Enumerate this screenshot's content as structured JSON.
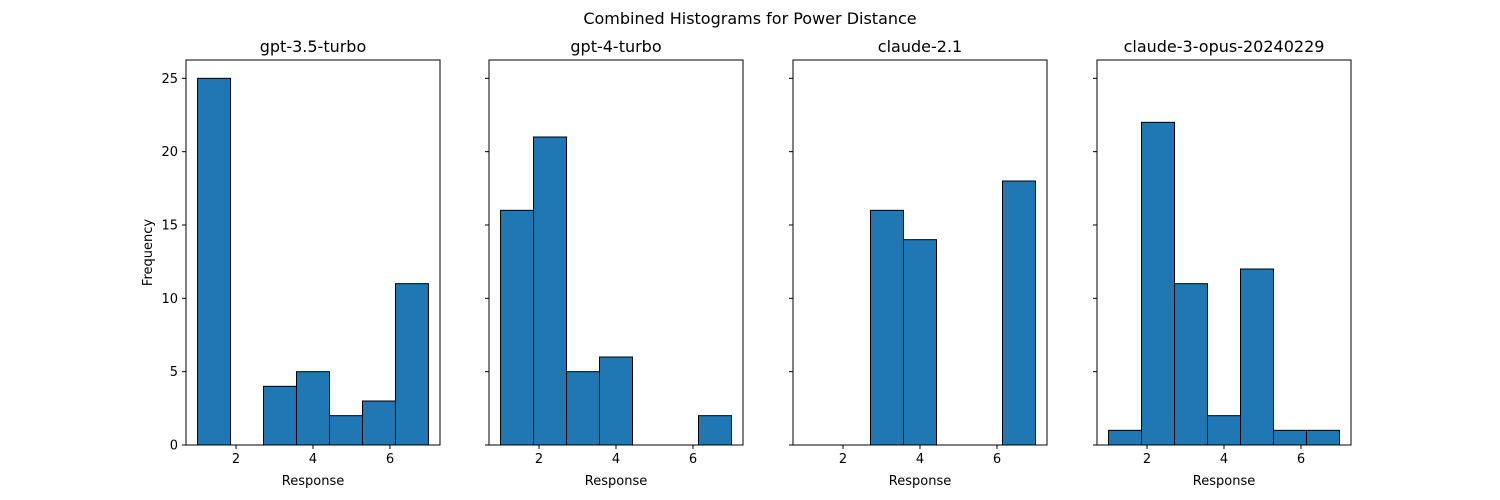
{
  "figure": {
    "title": "Combined Histograms for Power Distance"
  },
  "chart_data": [
    {
      "type": "bar",
      "title": "gpt-3.5-turbo",
      "xlabel": "Response",
      "ylabel": "Frequency",
      "bin_edges": [
        1,
        1.857,
        2.714,
        3.571,
        4.429,
        5.286,
        6.143,
        7
      ],
      "values": [
        25,
        0,
        4,
        5,
        2,
        3,
        11
      ],
      "xticks": [
        2,
        4,
        6
      ],
      "yticks": [
        0,
        5,
        10,
        15,
        20,
        25
      ],
      "color": "#1f77b4"
    },
    {
      "type": "bar",
      "title": "gpt-4-turbo",
      "xlabel": "Response",
      "ylabel": "",
      "bin_edges": [
        1,
        1.857,
        2.714,
        3.571,
        4.429,
        5.286,
        6.143,
        7
      ],
      "values": [
        16,
        21,
        5,
        6,
        0,
        0,
        2
      ],
      "xticks": [
        2,
        4,
        6
      ],
      "yticks": [
        0,
        5,
        10,
        15,
        20,
        25
      ],
      "color": "#1f77b4"
    },
    {
      "type": "bar",
      "title": "claude-2.1",
      "xlabel": "Response",
      "ylabel": "",
      "bin_edges": [
        1,
        1.857,
        2.714,
        3.571,
        4.429,
        5.286,
        6.143,
        7
      ],
      "values": [
        0,
        0,
        16,
        14,
        0,
        0,
        18
      ],
      "xticks": [
        2,
        4,
        6
      ],
      "yticks": [
        0,
        5,
        10,
        15,
        20,
        25
      ],
      "color": "#1f77b4"
    },
    {
      "type": "bar",
      "title": "claude-3-opus-20240229",
      "xlabel": "Response",
      "ylabel": "",
      "bin_edges": [
        1,
        1.857,
        2.714,
        3.571,
        4.429,
        5.286,
        6.143,
        7
      ],
      "values": [
        1,
        22,
        11,
        2,
        12,
        1,
        1
      ],
      "xticks": [
        2,
        4,
        6
      ],
      "yticks": [
        0,
        5,
        10,
        15,
        20,
        25
      ],
      "color": "#1f77b4"
    }
  ]
}
